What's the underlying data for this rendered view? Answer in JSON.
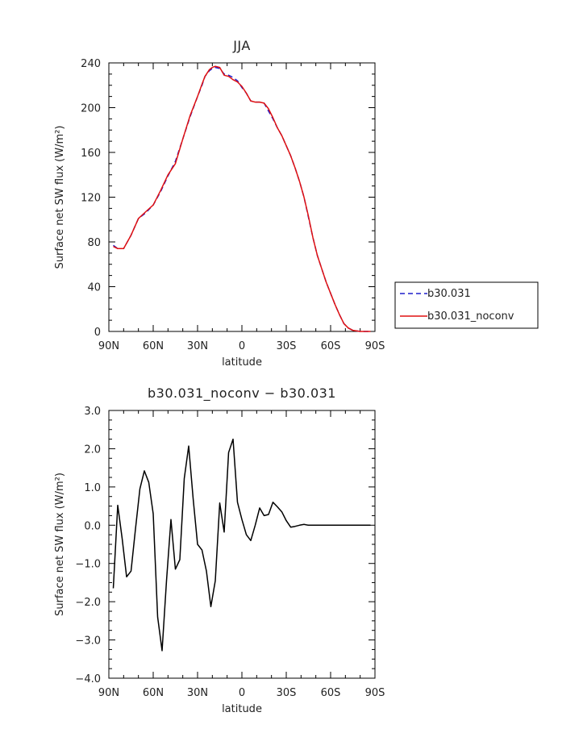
{
  "chart_data": [
    {
      "type": "line",
      "title": "JJA",
      "xlabel": "latitude",
      "ylabel": "Surface net SW flux (W/m²)",
      "xticks": [
        "90N",
        "60N",
        "30N",
        "0",
        "30S",
        "60S",
        "90S"
      ],
      "xtick_values": [
        90,
        60,
        30,
        0,
        -30,
        -60,
        -90
      ],
      "yticks": [
        "0",
        "40",
        "80",
        "120",
        "160",
        "200",
        "240"
      ],
      "ytick_values": [
        0,
        40,
        80,
        120,
        160,
        200,
        240
      ],
      "xlim": [
        90,
        -90
      ],
      "ylim": [
        0,
        240
      ],
      "legend_position": "right",
      "series": [
        {
          "name": "b30.031",
          "color": "#1f1fcc",
          "dash": "dashed",
          "x": [
            87,
            84,
            80,
            75,
            70,
            65,
            60,
            55,
            50,
            45,
            40,
            35,
            30,
            27,
            25,
            22,
            20,
            18,
            15,
            12,
            9,
            6,
            3,
            0,
            -3,
            -6,
            -9,
            -12,
            -15,
            -18,
            -21,
            -24,
            -27,
            -30,
            -33,
            -36,
            -39,
            -42,
            -45,
            -48,
            -51,
            -54,
            -57,
            -60,
            -63,
            -66,
            -69,
            -72,
            -75,
            -80,
            -85,
            -87
          ],
          "y": [
            77,
            74,
            74,
            86,
            101,
            106,
            113,
            125,
            139,
            152,
            172,
            192,
            210,
            220,
            228,
            233,
            235,
            236,
            235,
            230,
            229,
            227,
            224,
            218,
            213,
            206,
            205,
            205,
            204,
            197,
            190,
            182,
            175,
            166,
            157,
            146,
            134,
            120,
            102,
            84,
            68,
            56,
            44,
            34,
            24,
            15,
            7,
            3,
            1,
            0,
            0,
            0
          ]
        },
        {
          "name": "b30.031_noconv",
          "color": "#e01010",
          "dash": "solid",
          "x": [
            87,
            84,
            80,
            75,
            70,
            65,
            60,
            55,
            50,
            45,
            40,
            35,
            30,
            27,
            25,
            22,
            20,
            18,
            15,
            12,
            9,
            6,
            3,
            0,
            -3,
            -6,
            -9,
            -12,
            -15,
            -18,
            -21,
            -24,
            -27,
            -30,
            -33,
            -36,
            -39,
            -42,
            -45,
            -48,
            -51,
            -54,
            -57,
            -60,
            -63,
            -66,
            -69,
            -72,
            -75,
            -80,
            -85,
            -87
          ],
          "y": [
            76,
            74,
            74,
            86,
            101,
            107,
            113,
            126,
            140,
            150,
            172,
            193,
            210,
            221,
            228,
            234,
            236,
            237,
            236,
            229,
            228,
            225,
            223,
            219,
            213,
            206,
            205,
            205,
            204,
            199,
            191,
            182,
            175,
            166,
            157,
            146,
            134,
            120,
            103,
            84,
            68,
            56,
            44,
            34,
            24,
            15,
            7,
            3,
            1,
            0,
            0,
            0
          ]
        }
      ]
    },
    {
      "type": "line",
      "title": "b30.031_noconv − b30.031",
      "xlabel": "latitude",
      "ylabel": "Surface net SW flux (W/m²)",
      "xticks": [
        "90N",
        "60N",
        "30N",
        "0",
        "30S",
        "60S",
        "90S"
      ],
      "xtick_values": [
        90,
        60,
        30,
        0,
        -30,
        -60,
        -90
      ],
      "yticks": [
        "−4.0",
        "−3.0",
        "−2.0",
        "−1.0",
        "0.0",
        "1.0",
        "2.0",
        "3.0"
      ],
      "ytick_values": [
        -4,
        -3,
        -2,
        -1,
        0,
        1,
        2,
        3
      ],
      "xlim": [
        90,
        -90
      ],
      "ylim": [
        -4,
        3
      ],
      "series": [
        {
          "color": "#000000",
          "dash": "solid",
          "x": [
            87,
            84,
            81,
            78,
            75,
            72,
            69,
            66,
            63,
            60,
            57,
            54,
            51,
            48,
            45,
            42,
            39,
            36,
            33,
            30,
            27,
            24,
            21,
            18,
            15,
            12,
            9,
            6,
            3,
            0,
            -3,
            -6,
            -9,
            -12,
            -15,
            -18,
            -21,
            -24,
            -27,
            -30,
            -33,
            -36,
            -39,
            -42,
            -45,
            -48,
            -51,
            -54,
            -57,
            -60,
            -63,
            -66,
            -69,
            -75,
            -80,
            -85,
            -87
          ],
          "y": [
            -1.65,
            0.52,
            -0.35,
            -1.35,
            -1.2,
            -0.1,
            0.95,
            1.42,
            1.12,
            0.3,
            -2.4,
            -3.28,
            -1.45,
            0.15,
            -1.15,
            -0.9,
            1.22,
            2.07,
            0.7,
            -0.5,
            -0.65,
            -1.2,
            -2.13,
            -1.45,
            0.58,
            -0.18,
            1.9,
            2.25,
            0.6,
            0.15,
            -0.25,
            -0.4,
            0.0,
            0.45,
            0.25,
            0.28,
            0.6,
            0.48,
            0.35,
            0.12,
            -0.05,
            -0.03,
            0.0,
            0.02,
            0.0,
            0.0,
            0.0,
            0.0,
            0.0,
            0.0,
            0.0,
            0.0,
            0.0,
            0.0,
            0.0,
            0.0,
            0.0
          ]
        }
      ]
    }
  ]
}
